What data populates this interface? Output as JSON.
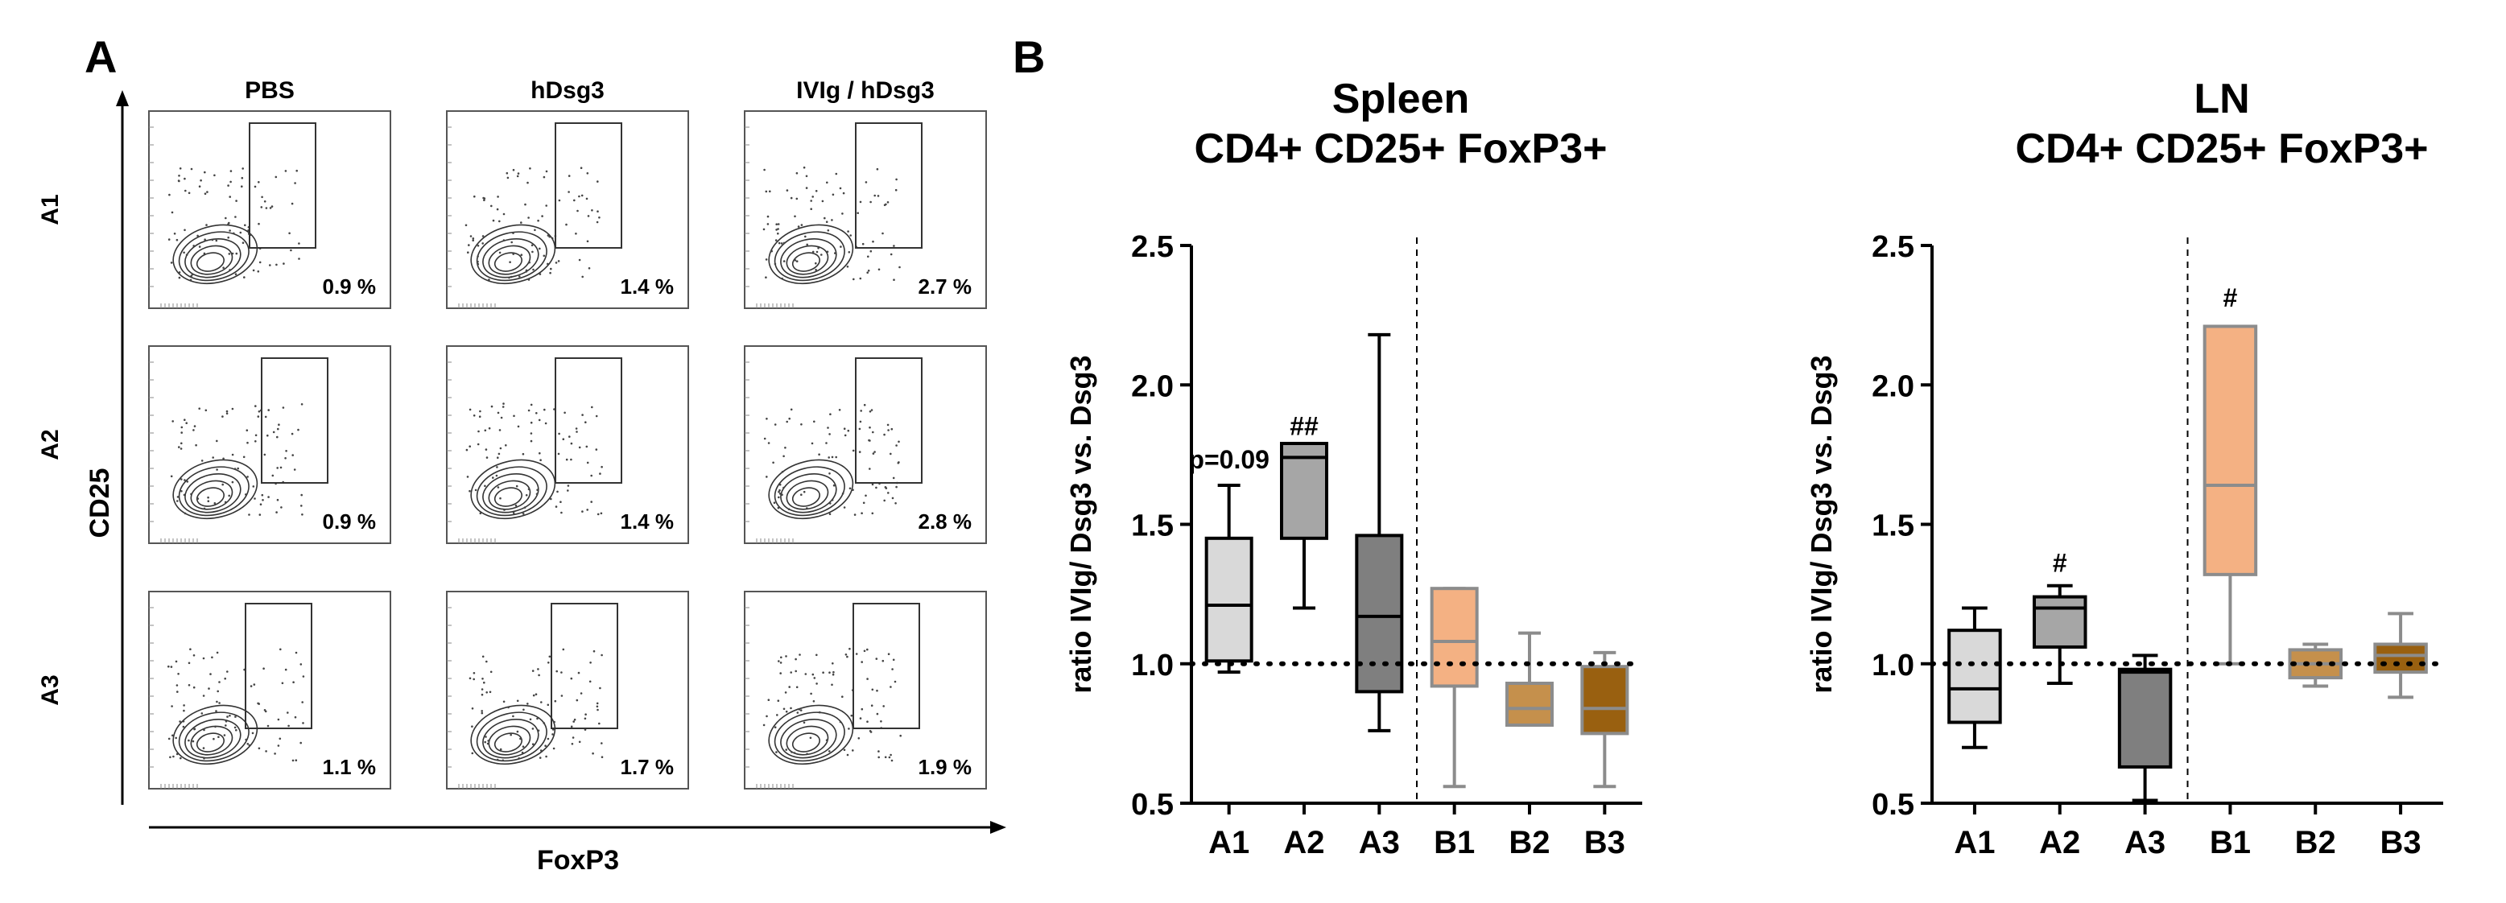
{
  "panel_a": {
    "letter": "A",
    "columns": [
      "PBS",
      "hDsg3",
      "IVIg / hDsg3"
    ],
    "rows": [
      "A1",
      "A2",
      "A3"
    ],
    "percentages": [
      [
        "0.9 %",
        "1.4 %",
        "2.7 %"
      ],
      [
        "0.9 %",
        "1.4 %",
        "2.8 %"
      ],
      [
        "1.1 %",
        "1.7 %",
        "1.9 %"
      ]
    ],
    "y_axis_label": "CD25",
    "x_axis_label": "FoxP3"
  },
  "panel_b": {
    "letter": "B"
  },
  "chart_data": [
    {
      "type": "box",
      "title": [
        "Spleen",
        "CD4+ CD25+ FoxP3+"
      ],
      "ylabel": "ratio IVIg/ Dsg3 vs. Dsg3",
      "xlabel": "",
      "ylim": [
        0.5,
        2.5
      ],
      "yticks": [
        "0.5",
        "1.0",
        "1.5",
        "2.0",
        "2.5"
      ],
      "reference_line": 1.0,
      "group_separator_after": "A3",
      "categories": [
        "A1",
        "A2",
        "A3",
        "B1",
        "B2",
        "B3"
      ],
      "boxes": [
        {
          "category": "A1",
          "min": 0.97,
          "q1": 1.01,
          "median": 1.21,
          "q3": 1.45,
          "max": 1.64,
          "fill": "#d9d9d9",
          "stroke": "#000000"
        },
        {
          "category": "A2",
          "min": 1.2,
          "q1": 1.45,
          "median": 1.74,
          "q3": 1.79,
          "max": 1.79,
          "fill": "#a6a6a6",
          "stroke": "#000000"
        },
        {
          "category": "A3",
          "min": 0.76,
          "q1": 0.9,
          "median": 1.17,
          "q3": 1.46,
          "max": 2.18,
          "fill": "#7f7f7f",
          "stroke": "#000000"
        },
        {
          "category": "B1",
          "min": 0.56,
          "q1": 0.92,
          "median": 1.08,
          "q3": 1.27,
          "max": 1.27,
          "fill": "#f4b183",
          "stroke": "#8c8c8c"
        },
        {
          "category": "B2",
          "min": 0.78,
          "q1": 0.78,
          "median": 0.84,
          "q3": 0.93,
          "max": 1.11,
          "fill": "#c5904c",
          "stroke": "#8c8c8c"
        },
        {
          "category": "B3",
          "min": 0.56,
          "q1": 0.75,
          "median": 0.84,
          "q3": 0.99,
          "max": 1.04,
          "fill": "#996010",
          "stroke": "#8c8c8c"
        }
      ],
      "annotations": [
        {
          "category": "A1",
          "text": "p=0.09",
          "y": 1.7
        },
        {
          "category": "A2",
          "text": "##",
          "y": 1.82
        }
      ]
    },
    {
      "type": "box",
      "title": [
        "LN",
        "CD4+ CD25+ FoxP3+"
      ],
      "ylabel": "ratio IVIg/ Dsg3 vs. Dsg3",
      "xlabel": "",
      "ylim": [
        0.5,
        2.5
      ],
      "yticks": [
        "0.5",
        "1.0",
        "1.5",
        "2.0",
        "2.5"
      ],
      "reference_line": 1.0,
      "group_separator_after": "A3",
      "categories": [
        "A1",
        "A2",
        "A3",
        "B1",
        "B2",
        "B3"
      ],
      "boxes": [
        {
          "category": "A1",
          "min": 0.7,
          "q1": 0.79,
          "median": 0.91,
          "q3": 1.12,
          "max": 1.2,
          "fill": "#d9d9d9",
          "stroke": "#000000"
        },
        {
          "category": "A2",
          "min": 0.93,
          "q1": 1.06,
          "median": 1.2,
          "q3": 1.24,
          "max": 1.28,
          "fill": "#a6a6a6",
          "stroke": "#000000"
        },
        {
          "category": "A3",
          "min": 0.51,
          "q1": 0.63,
          "median": 0.97,
          "q3": 0.98,
          "max": 1.03,
          "fill": "#7f7f7f",
          "stroke": "#000000"
        },
        {
          "category": "B1",
          "min": 1.0,
          "q1": 1.32,
          "median": 1.64,
          "q3": 2.21,
          "max": 2.21,
          "fill": "#f4b183",
          "stroke": "#8c8c8c"
        },
        {
          "category": "B2",
          "min": 0.92,
          "q1": 0.95,
          "median": 1.0,
          "q3": 1.05,
          "max": 1.07,
          "fill": "#c5904c",
          "stroke": "#8c8c8c"
        },
        {
          "category": "B3",
          "min": 0.88,
          "q1": 0.97,
          "median": 1.03,
          "q3": 1.07,
          "max": 1.18,
          "fill": "#996010",
          "stroke": "#8c8c8c"
        }
      ],
      "annotations": [
        {
          "category": "A2",
          "text": "#",
          "y": 1.33
        },
        {
          "category": "B1",
          "text": "#",
          "y": 2.28
        }
      ]
    }
  ]
}
